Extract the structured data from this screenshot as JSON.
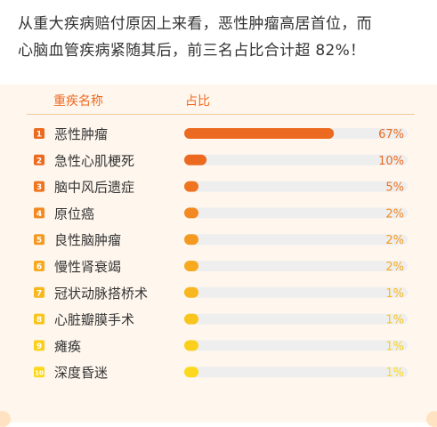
{
  "intro": {
    "line1": "从重大疾病赔付原因上来看，恶性肿瘤高居首位，而",
    "line2": "心脑血管疾病紧随其后，前三名占比合计超 82%！"
  },
  "chart_data": {
    "type": "bar",
    "header": {
      "name": "重疾名称",
      "value": "占比"
    },
    "categories": [
      "恶性肿瘤",
      "急性心肌梗死",
      "脑中风后遗症",
      "原位癌",
      "良性脑肿瘤",
      "慢性肾衰竭",
      "冠状动脉搭桥术",
      "心脏瓣膜手术",
      "瘫痪",
      "深度昏迷"
    ],
    "ranks": [
      "1",
      "2",
      "3",
      "4",
      "5",
      "6",
      "7",
      "8",
      "9",
      "10"
    ],
    "values": [
      67,
      10,
      5,
      2,
      2,
      2,
      1,
      1,
      1,
      1
    ],
    "value_labels": [
      "67%",
      "10%",
      "5%",
      "2%",
      "2%",
      "2%",
      "1%",
      "1%",
      "1%",
      "1%"
    ],
    "xlim": [
      0,
      100
    ],
    "colors": [
      "#ec6a1f",
      "#ec6a1f",
      "#ee741f",
      "#f28a21",
      "#f49a21",
      "#f7aa20",
      "#f8b71e",
      "#f9c51d",
      "#fbd01d",
      "#fcd91e"
    ],
    "track_color": "#eeeeee",
    "grid": false
  }
}
